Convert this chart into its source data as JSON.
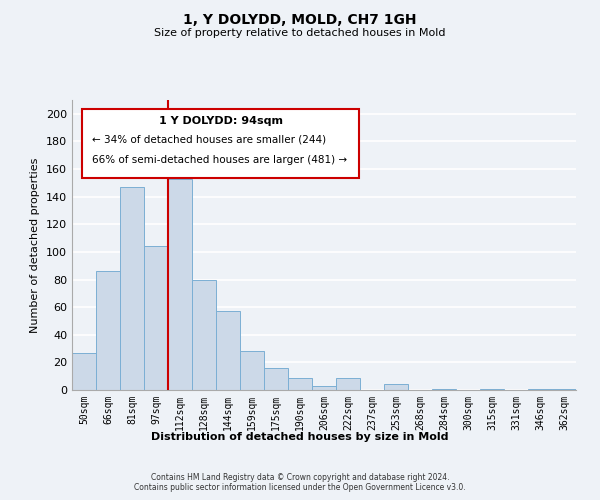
{
  "title": "1, Y DOLYDD, MOLD, CH7 1GH",
  "subtitle": "Size of property relative to detached houses in Mold",
  "xlabel": "Distribution of detached houses by size in Mold",
  "ylabel": "Number of detached properties",
  "bar_color": "#ccd9e8",
  "bar_edge_color": "#7bafd4",
  "categories": [
    "50sqm",
    "66sqm",
    "81sqm",
    "97sqm",
    "112sqm",
    "128sqm",
    "144sqm",
    "159sqm",
    "175sqm",
    "190sqm",
    "206sqm",
    "222sqm",
    "237sqm",
    "253sqm",
    "268sqm",
    "284sqm",
    "300sqm",
    "315sqm",
    "331sqm",
    "346sqm",
    "362sqm"
  ],
  "values": [
    27,
    86,
    147,
    104,
    153,
    80,
    57,
    28,
    16,
    9,
    3,
    9,
    0,
    4,
    0,
    1,
    0,
    1,
    0,
    1,
    1
  ],
  "vline_x": 3.5,
  "vline_color": "#cc0000",
  "annotation_title": "1 Y DOLYDD: 94sqm",
  "annotation_line1": "← 34% of detached houses are smaller (244)",
  "annotation_line2": "66% of semi-detached houses are larger (481) →",
  "annotation_box_color": "#ffffff",
  "annotation_box_edge": "#cc0000",
  "ylim": [
    0,
    210
  ],
  "yticks": [
    0,
    20,
    40,
    60,
    80,
    100,
    120,
    140,
    160,
    180,
    200
  ],
  "background_color": "#eef2f7",
  "grid_color": "#ffffff",
  "footer1": "Contains HM Land Registry data © Crown copyright and database right 2024.",
  "footer2": "Contains public sector information licensed under the Open Government Licence v3.0."
}
